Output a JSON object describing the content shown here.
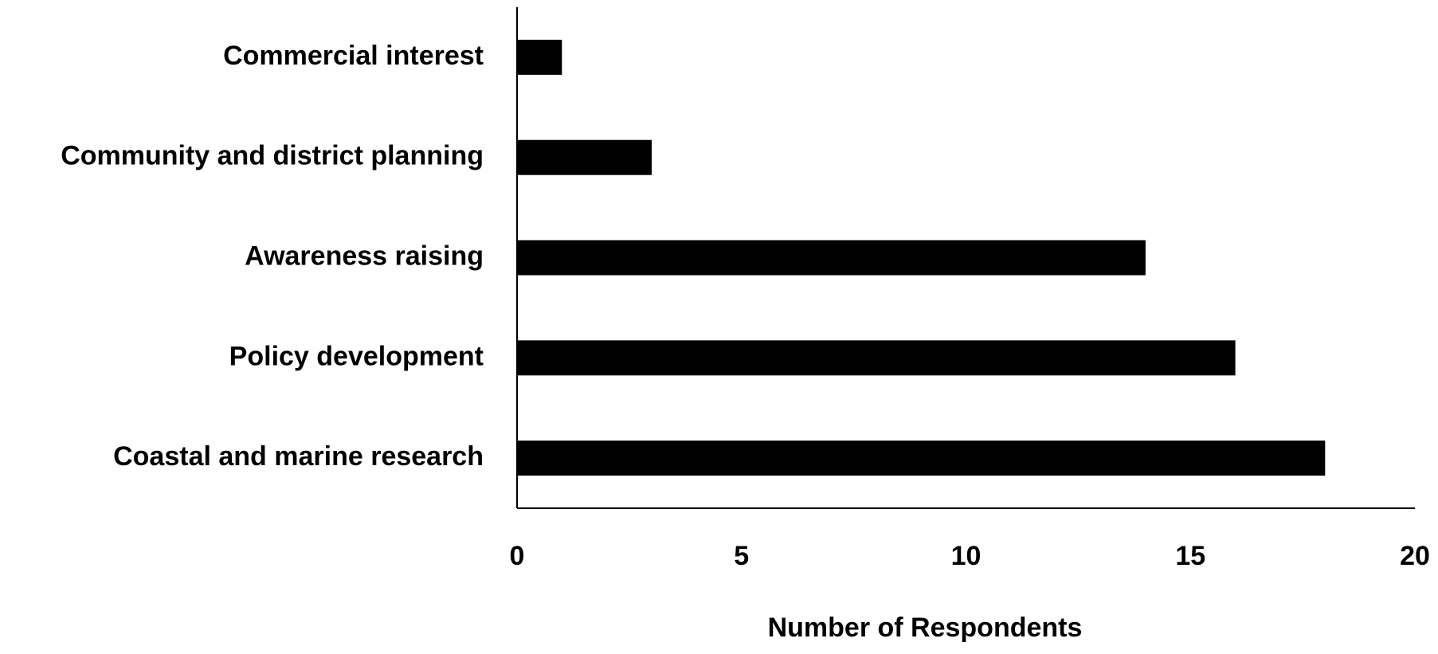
{
  "chart_data": {
    "type": "barh",
    "categories": [
      "Commercial interest",
      "Community and district planning",
      "Awareness raising",
      "Policy development",
      "Coastal and marine research"
    ],
    "values": [
      1,
      3,
      14,
      16,
      18
    ],
    "color": "#000000",
    "xlabel": "Number of Respondents",
    "xlim": [
      0,
      20
    ],
    "xticks": [
      0,
      5,
      10,
      15,
      20
    ],
    "grid": false
  }
}
